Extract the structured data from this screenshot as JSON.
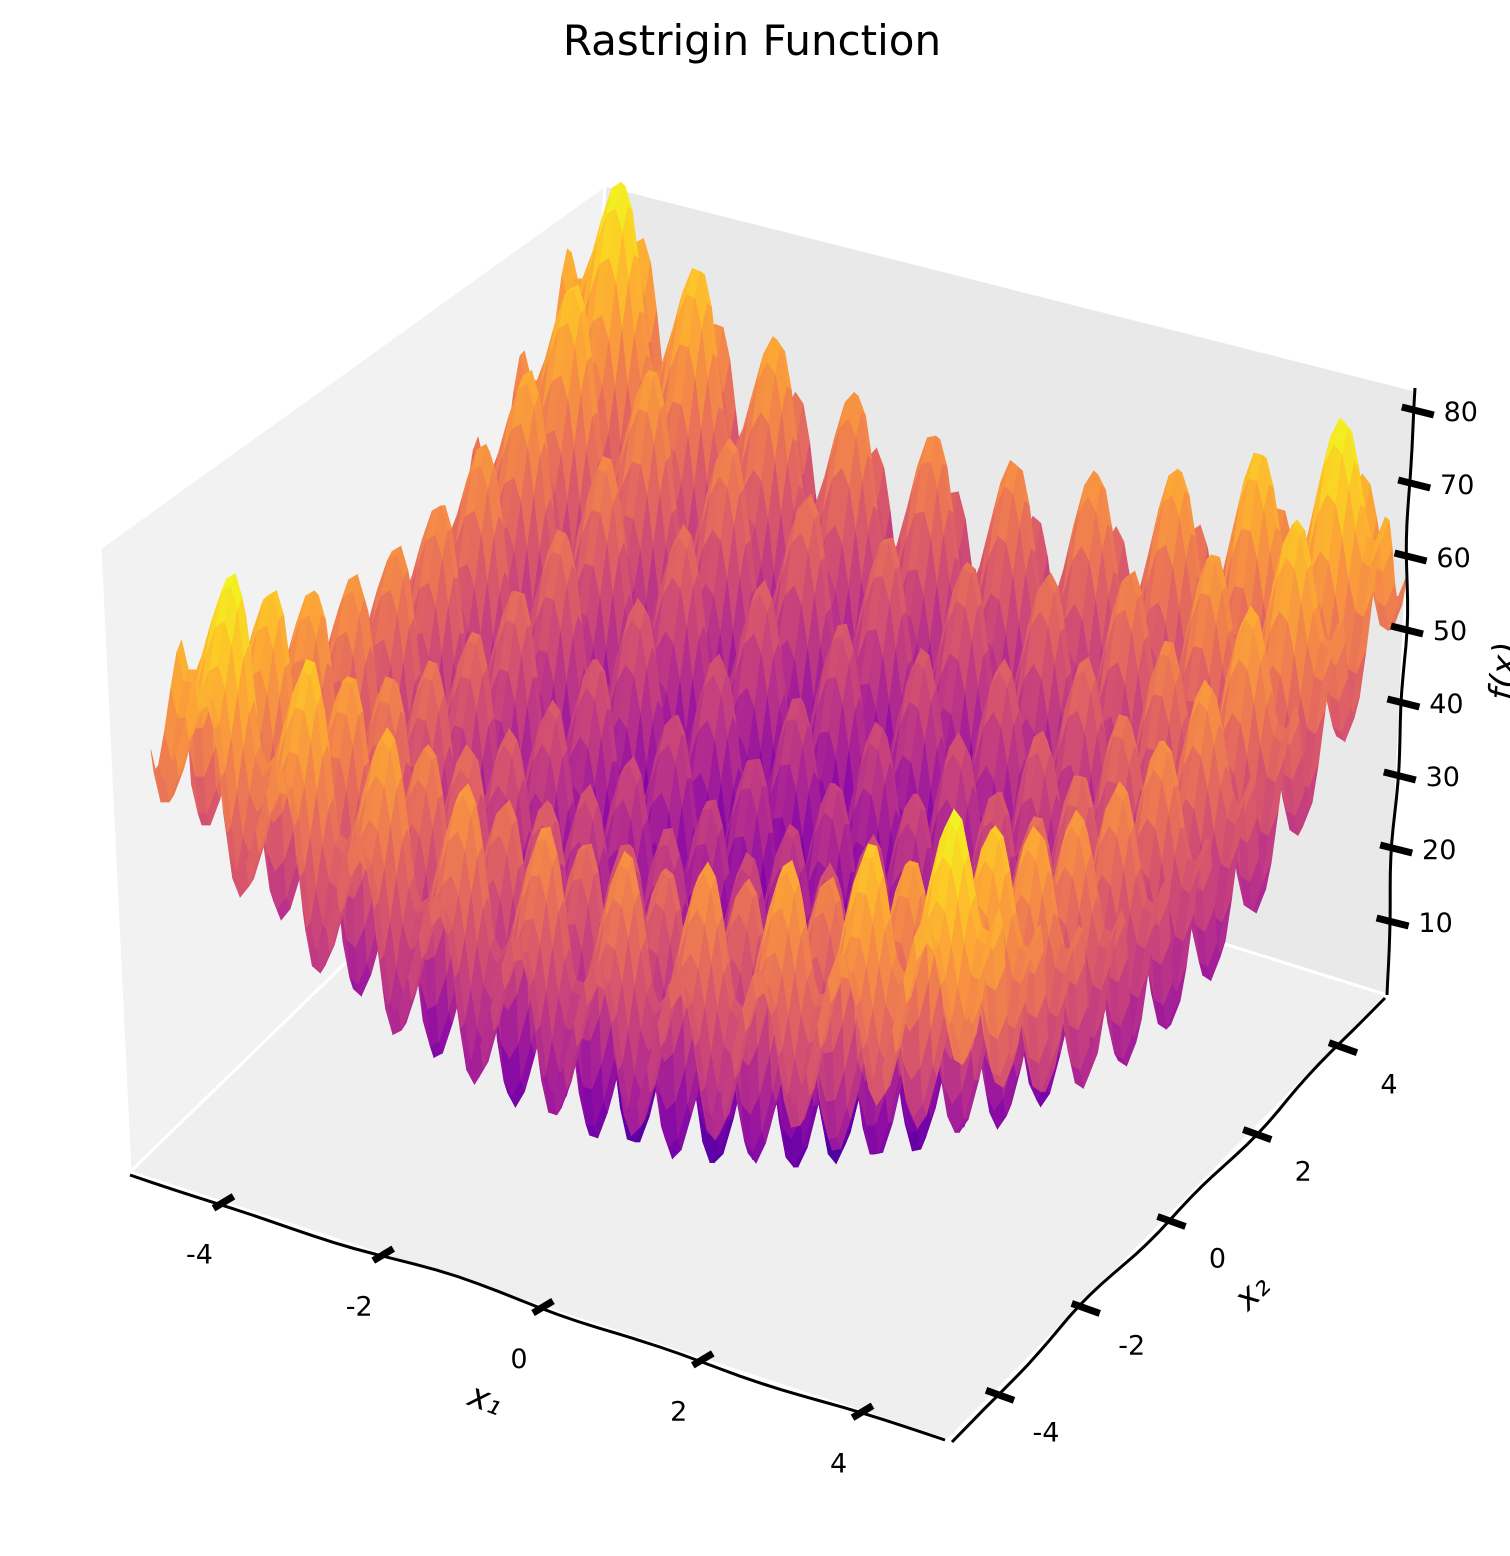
{
  "chart_data": {
    "type": "surface",
    "title": "Rastrigin Function",
    "function": "rastrigin",
    "A": 10,
    "dimensions": 2,
    "grid_points": 100,
    "xlabel": "x₁",
    "ylabel": "x₂",
    "zlabel": "f(x)",
    "xlim": [
      -5.12,
      5.12
    ],
    "ylim": [
      -5.12,
      5.12
    ],
    "zlim": [
      0,
      81
    ],
    "xticks": [
      -4,
      -2,
      0,
      2,
      4
    ],
    "xtick_labels": [
      "-4",
      "-2",
      "0",
      "2",
      "4"
    ],
    "yticks": [
      -4,
      -2,
      0,
      2,
      4
    ],
    "ytick_labels": [
      "-4",
      "-2",
      "0",
      "2",
      "4"
    ],
    "zticks": [
      10,
      20,
      30,
      40,
      50,
      60,
      70,
      80
    ],
    "ztick_labels": [
      "10",
      "20",
      "30",
      "40",
      "50",
      "60",
      "70",
      "80"
    ],
    "colormap": "plasma",
    "style": "xkcd",
    "colors": {
      "left_pane": "#f2f2f2",
      "back_pane": "#e9e9e9",
      "floor_pane": "#efefef",
      "axis": "#000000"
    }
  }
}
